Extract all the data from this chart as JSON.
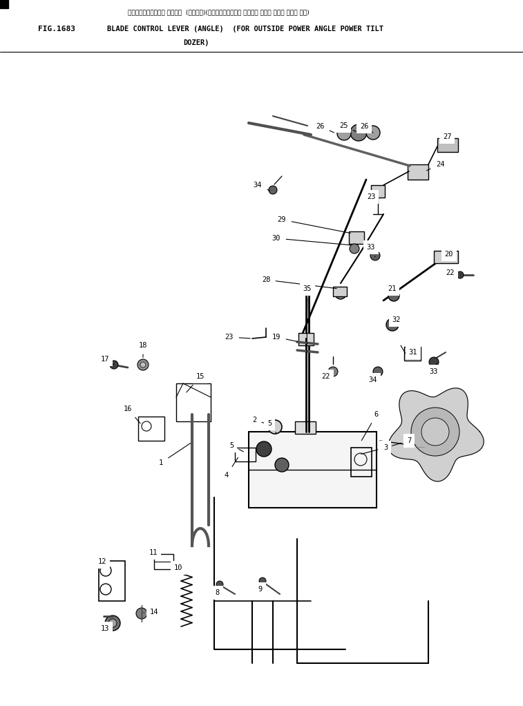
{
  "title_japanese": "ブレードコントロール レバーー  (アングル)(アウトサイドパワー アングル パワー チルト ドーザ ヨウ)",
  "title_line1": "BLADE CONTROL LEVER (ANGLE)  (FOR OUTSIDE POWER ANGLE POWER TILT",
  "title_line2": "DOZER)",
  "fig_label": "FIG.1683",
  "bg_color": "#ffffff",
  "lc": "#000000",
  "tc": "#000000"
}
